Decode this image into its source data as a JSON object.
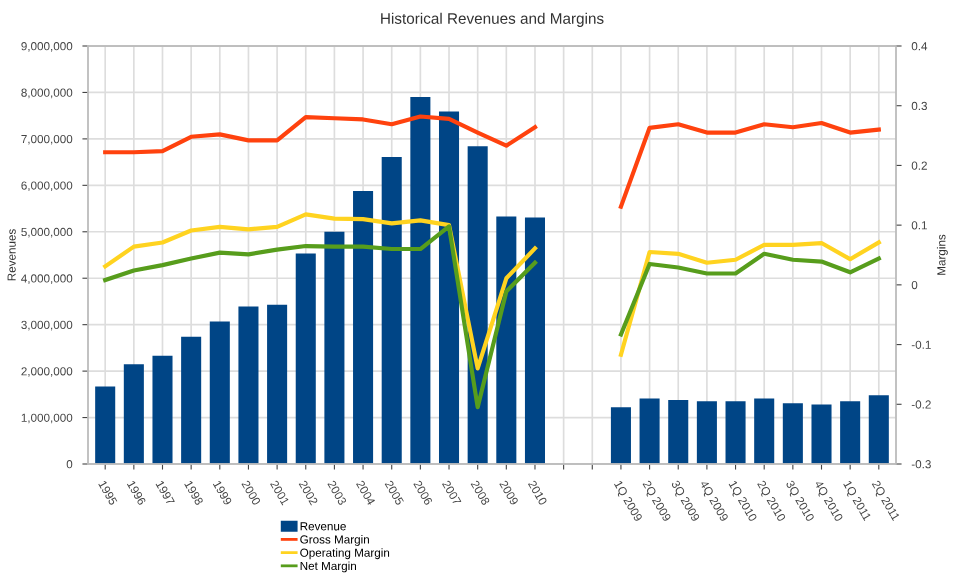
{
  "chart_data": {
    "type": "bar",
    "title": "Historical Revenues and Margins",
    "ylabel": "Revenues",
    "y2label": "Margins",
    "categories": [
      "1995",
      "1996",
      "1997",
      "1998",
      "1999",
      "2000",
      "2001",
      "2002",
      "2003",
      "2004",
      "2005",
      "2006",
      "2007",
      "2008",
      "2009",
      "2010",
      null,
      null,
      "1Q 2009",
      "2Q 2009",
      "3Q 2009",
      "4Q 2009",
      "1Q 2010",
      "2Q 2010",
      "3Q 2010",
      "4Q 2010",
      "1Q 2011",
      "2Q 2011"
    ],
    "series": [
      {
        "name": "Revenue",
        "color": "#004586",
        "values": [
          1670000,
          2150000,
          2330000,
          2740000,
          3070000,
          3390000,
          3430000,
          4530000,
          5000000,
          5880000,
          6610000,
          7900000,
          7590000,
          6840000,
          5330000,
          5310000,
          null,
          null,
          1220000,
          1410000,
          1380000,
          1350000,
          1350000,
          1410000,
          1310000,
          1280000,
          1350000,
          1480000
        ]
      },
      {
        "name": "Gross Margin",
        "type": "line",
        "axis": "y2",
        "color": "#ff420e",
        "values": [
          0.222,
          0.222,
          0.224,
          0.248,
          0.252,
          0.242,
          0.242,
          0.281,
          0.279,
          0.277,
          0.269,
          0.282,
          0.278,
          0.255,
          0.233,
          0.264,
          null,
          null,
          0.131,
          0.263,
          0.269,
          0.255,
          0.255,
          0.269,
          0.264,
          0.271,
          0.255,
          0.26
        ]
      },
      {
        "name": "Operating Margin",
        "type": "line",
        "axis": "y2",
        "color": "#ffd320",
        "values": [
          0.031,
          0.064,
          0.071,
          0.091,
          0.097,
          0.093,
          0.097,
          0.118,
          0.111,
          0.11,
          0.103,
          0.108,
          0.1,
          -0.14,
          0.011,
          0.061,
          null,
          null,
          -0.117,
          0.055,
          0.052,
          0.037,
          0.042,
          0.067,
          0.067,
          0.07,
          0.043,
          0.071
        ]
      },
      {
        "name": "Net Margin",
        "type": "line",
        "axis": "y2",
        "color": "#579d1c",
        "values": [
          0.008,
          0.024,
          0.033,
          0.044,
          0.054,
          0.051,
          0.059,
          0.065,
          0.064,
          0.064,
          0.06,
          0.06,
          0.098,
          -0.205,
          -0.011,
          0.037,
          null,
          null,
          -0.083,
          0.035,
          0.029,
          0.019,
          0.019,
          0.052,
          0.042,
          0.039,
          0.021,
          0.044
        ]
      }
    ],
    "ylim": [
      0,
      9000000
    ],
    "yticks": [
      {
        "value": 0,
        "label": "0"
      },
      {
        "value": 1000000,
        "label": "1,000,000"
      },
      {
        "value": 2000000,
        "label": "2,000,000"
      },
      {
        "value": 3000000,
        "label": "3,000,000"
      },
      {
        "value": 4000000,
        "label": "4,000,000"
      },
      {
        "value": 5000000,
        "label": "5,000,000"
      },
      {
        "value": 6000000,
        "label": "6,000,000"
      },
      {
        "value": 7000000,
        "label": "7,000,000"
      },
      {
        "value": 8000000,
        "label": "8,000,000"
      },
      {
        "value": 9000000,
        "label": "9,000,000"
      }
    ],
    "y2lim": [
      -0.3,
      0.4
    ],
    "y2ticks": [
      -0.3,
      -0.2,
      -0.1,
      0,
      0.1,
      0.2,
      0.3,
      0.4
    ],
    "grid": true,
    "legend": "bottom",
    "marker": "none",
    "line_style": "solid"
  }
}
